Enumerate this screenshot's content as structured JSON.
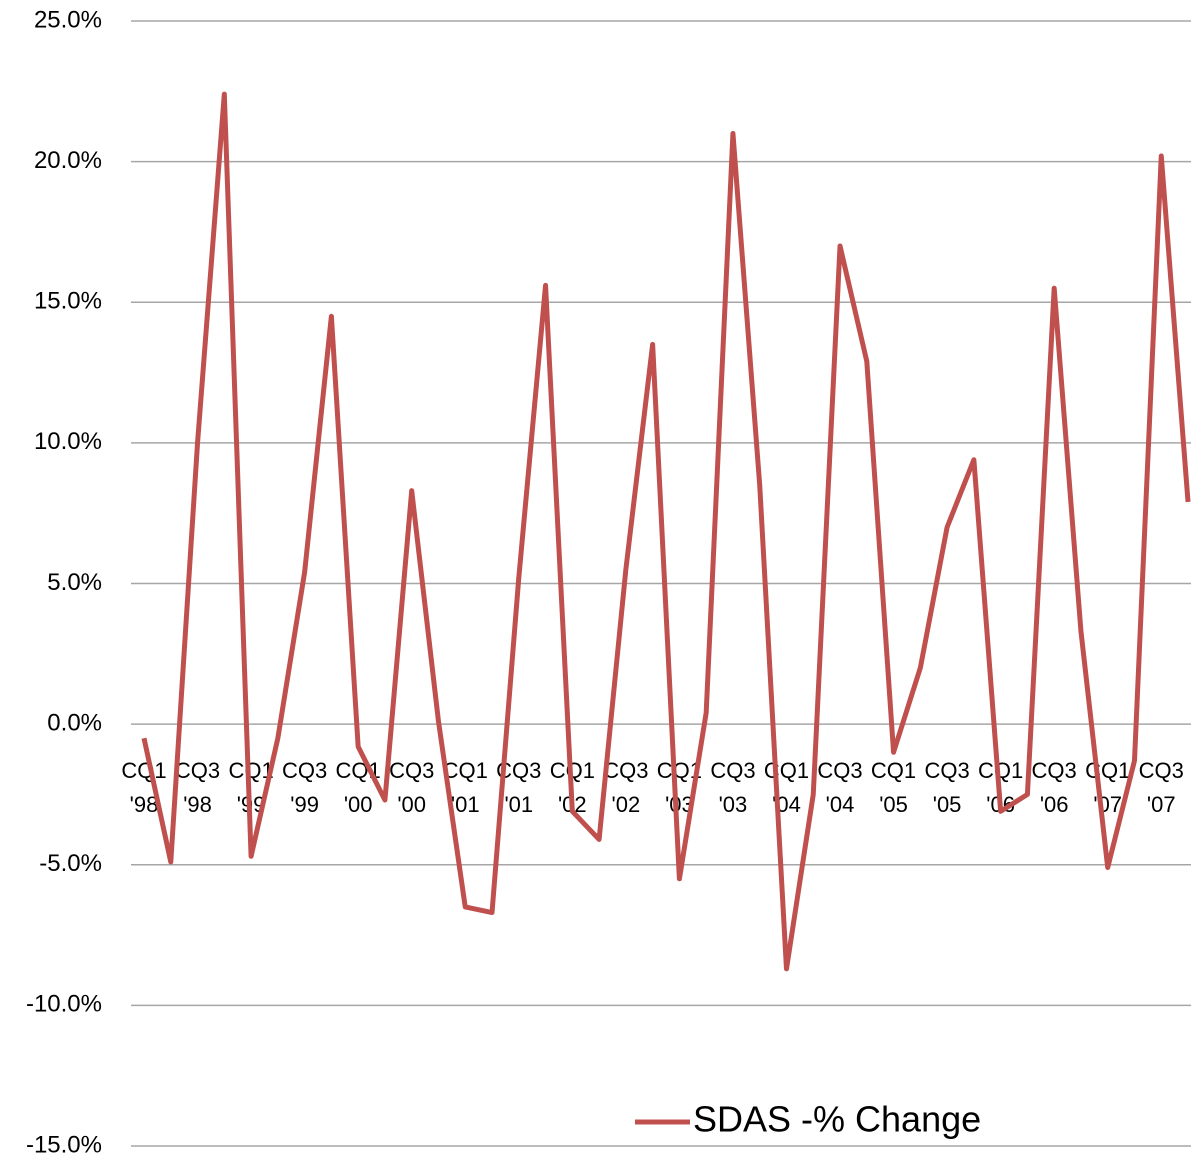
{
  "chart_data": {
    "type": "line",
    "categories": [
      "CQ1 '98",
      null,
      "CQ3 '98",
      null,
      "CQ1 '99",
      null,
      "CQ3 '99",
      null,
      "CQ1 '00",
      null,
      "CQ3 '00",
      null,
      "CQ1 '01",
      null,
      "CQ3 '01",
      null,
      "CQ1 '02",
      null,
      "CQ3 '02",
      null,
      "CQ1 '03",
      null,
      "CQ3 '03",
      null,
      "CQ1 '04",
      null,
      "CQ3 '04",
      null,
      "CQ1 '05",
      null,
      "CQ3 '05",
      null,
      "CQ1 '06",
      null,
      "CQ3 '06",
      null,
      "CQ1 '07",
      null,
      "CQ3 '07",
      null
    ],
    "series": [
      {
        "name": "SDAS -% Change",
        "color": "#c0504d",
        "values": [
          -0.5,
          -4.9,
          10.0,
          22.4,
          -4.7,
          -0.5,
          5.4,
          14.5,
          -0.8,
          -2.7,
          8.3,
          0.1,
          -6.5,
          -6.7,
          5.2,
          15.6,
          -3.1,
          -4.1,
          5.5,
          13.5,
          -5.5,
          0.4,
          21.0,
          8.5,
          -8.7,
          -2.5,
          17.0,
          12.9,
          -1.0,
          2.0,
          7.0,
          9.4,
          -3.1,
          -2.5,
          15.5,
          3.3,
          -5.1,
          -1.3,
          20.2,
          7.9
        ]
      }
    ],
    "ylim": [
      -15,
      25
    ],
    "yticks": [
      {
        "value": -15,
        "label": "-15.0%"
      },
      {
        "value": -10,
        "label": "-10.0%"
      },
      {
        "value": -5,
        "label": "-5.0%"
      },
      {
        "value": 0,
        "label": "0.0%"
      },
      {
        "value": 5,
        "label": "5.0%"
      },
      {
        "value": 10,
        "label": "10.0%"
      },
      {
        "value": 15,
        "label": "15.0%"
      },
      {
        "value": 20,
        "label": "20.0%"
      },
      {
        "value": 25,
        "label": "25.0%"
      }
    ],
    "grid": true,
    "legend": "bottom"
  }
}
